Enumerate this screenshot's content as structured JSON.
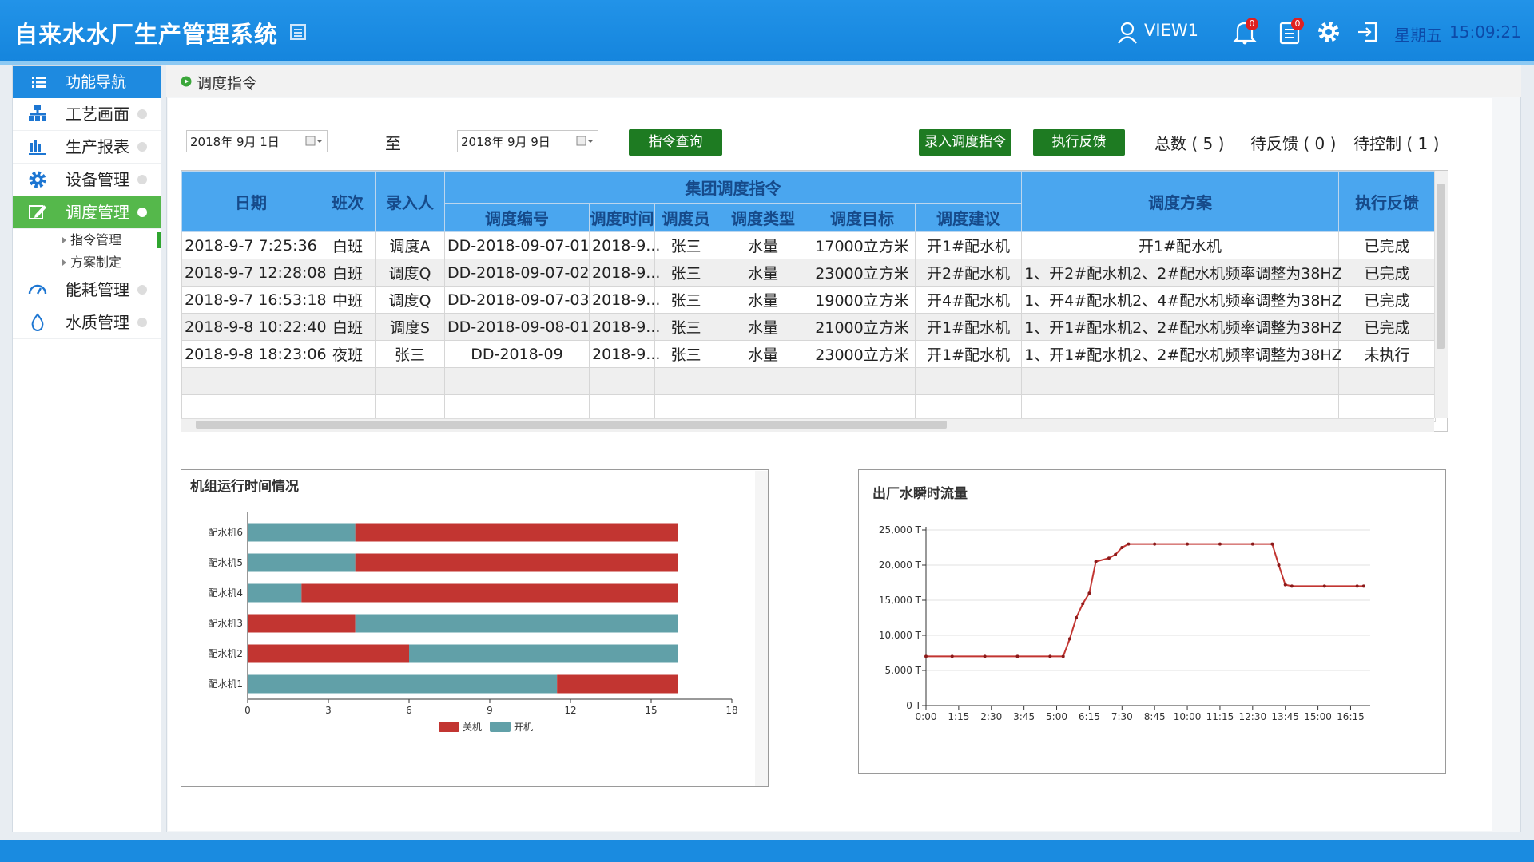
{
  "header": {
    "title": "自来水水厂生产管理系统",
    "user": "VIEW1",
    "notifications": "0",
    "tasks": "0",
    "weekday": "星期五",
    "time": "15:09:21"
  },
  "nav": {
    "title": "功能导航",
    "items": [
      {
        "label": "工艺画面"
      },
      {
        "label": "生产报表"
      },
      {
        "label": "设备管理"
      },
      {
        "label": "调度管理",
        "active": true,
        "children": [
          "指令管理",
          "方案制定"
        ],
        "active_child": 0
      },
      {
        "label": "能耗管理"
      },
      {
        "label": "水质管理"
      }
    ]
  },
  "breadcrumb": "调度指令",
  "toolbar": {
    "start_date": "2018年 9月 1日",
    "separator": "至",
    "end_date": "2018年 9月 9日",
    "query": "指令查询",
    "add": "录入调度指令",
    "feedback": "执行反馈",
    "total": "总数 ( 5 )",
    "pending_feedback": "待反馈 ( 0 )",
    "pending_control": "待控制 ( 1 )"
  },
  "table": {
    "columns_before": [
      "日期",
      "班次",
      "录入人"
    ],
    "group": {
      "title": "集团调度指令",
      "columns": [
        "调度编号",
        "调度时间",
        "调度员",
        "调度类型",
        "调度目标",
        "调度建议"
      ]
    },
    "columns_after": [
      "调度方案",
      "执行反馈"
    ],
    "rows": [
      [
        "2018-9-7 7:25:36",
        "白班",
        "调度A",
        "DD-2018-09-07-01",
        "2018-9...",
        "张三",
        "水量",
        "17000立方米",
        "开1#配水机",
        "开1#配水机",
        "已完成"
      ],
      [
        "2018-9-7 12:28:08",
        "白班",
        "调度Q",
        "DD-2018-09-07-02",
        "2018-9...",
        "张三",
        "水量",
        "23000立方米",
        "开2#配水机",
        "1、开2#配水机2、2#配水机频率调整为38HZ",
        "已完成"
      ],
      [
        "2018-9-7 16:53:18",
        "中班",
        "调度Q",
        "DD-2018-09-07-03",
        "2018-9...",
        "张三",
        "水量",
        "19000立方米",
        "开4#配水机",
        "1、开4#配水机2、4#配水机频率调整为38HZ",
        "已完成"
      ],
      [
        "2018-9-8 10:22:40",
        "白班",
        "调度S",
        "DD-2018-09-08-01",
        "2018-9...",
        "张三",
        "水量",
        "21000立方米",
        "开1#配水机",
        "1、开1#配水机2、2#配水机频率调整为38HZ",
        "已完成"
      ],
      [
        "2018-9-8 18:23:06",
        "夜班",
        "张三",
        "DD-2018-09",
        "2018-9...",
        "张三",
        "水量",
        "23000立方米",
        "开1#配水机",
        "1、开1#配水机2、2#配水机频率调整为38HZ",
        "未执行"
      ]
    ]
  },
  "chart_data": [
    {
      "type": "bar",
      "orientation": "horizontal",
      "stacked": true,
      "title": "机组运行时间情况",
      "categories": [
        "配水机1",
        "配水机2",
        "配水机3",
        "配水机4",
        "配水机5",
        "配水机6"
      ],
      "series": [
        {
          "name": "关机",
          "color": "#c23531",
          "values": [
            4.5,
            6,
            4,
            14,
            12,
            12
          ]
        },
        {
          "name": "开机",
          "color": "#61a0a8",
          "values": [
            11.5,
            10,
            12,
            2,
            4,
            4
          ]
        }
      ],
      "stack_first": [
        "开机",
        "关机",
        "关机",
        "开机",
        "开机",
        "开机"
      ],
      "xlim": [
        0,
        18
      ],
      "xticks": [
        0,
        3,
        6,
        9,
        12,
        15,
        18
      ],
      "legend": "bottom"
    },
    {
      "type": "line",
      "title": "出厂水瞬时流量",
      "x": [
        "0:00",
        "1:00",
        "2:15",
        "3:30",
        "4:45",
        "5:15",
        "5:30",
        "5:45",
        "6:00",
        "6:15",
        "6:30",
        "7:00",
        "7:15",
        "7:30",
        "7:45",
        "8:45",
        "10:00",
        "11:15",
        "12:30",
        "13:15",
        "13:30",
        "13:45",
        "14:00",
        "15:15",
        "16:30",
        "16:45"
      ],
      "series": [
        {
          "color": "#c23531",
          "values": [
            7000,
            7000,
            7000,
            7000,
            7000,
            7000,
            9500,
            12500,
            14500,
            16000,
            20500,
            21000,
            21500,
            22500,
            23000,
            23000,
            23000,
            23000,
            23000,
            23000,
            20000,
            17200,
            17000,
            17000,
            17000,
            17000
          ]
        }
      ],
      "xlim": [
        "0:00",
        "17:00"
      ],
      "xticks": [
        "0:00",
        "1:15",
        "2:30",
        "3:45",
        "5:00",
        "6:15",
        "7:30",
        "8:45",
        "10:00",
        "11:15",
        "12:30",
        "13:45",
        "15:00",
        "16:15"
      ],
      "ylim": [
        0,
        25000
      ],
      "yticks": [
        {
          "value": 0,
          "label": "0 T"
        },
        {
          "value": 5000,
          "label": "5,000 T"
        },
        {
          "value": 10000,
          "label": "10,000 T"
        },
        {
          "value": 15000,
          "label": "15,000 T"
        },
        {
          "value": 20000,
          "label": "20,000 T"
        },
        {
          "value": 25000,
          "label": "25,000 T"
        }
      ],
      "grid": true
    }
  ]
}
